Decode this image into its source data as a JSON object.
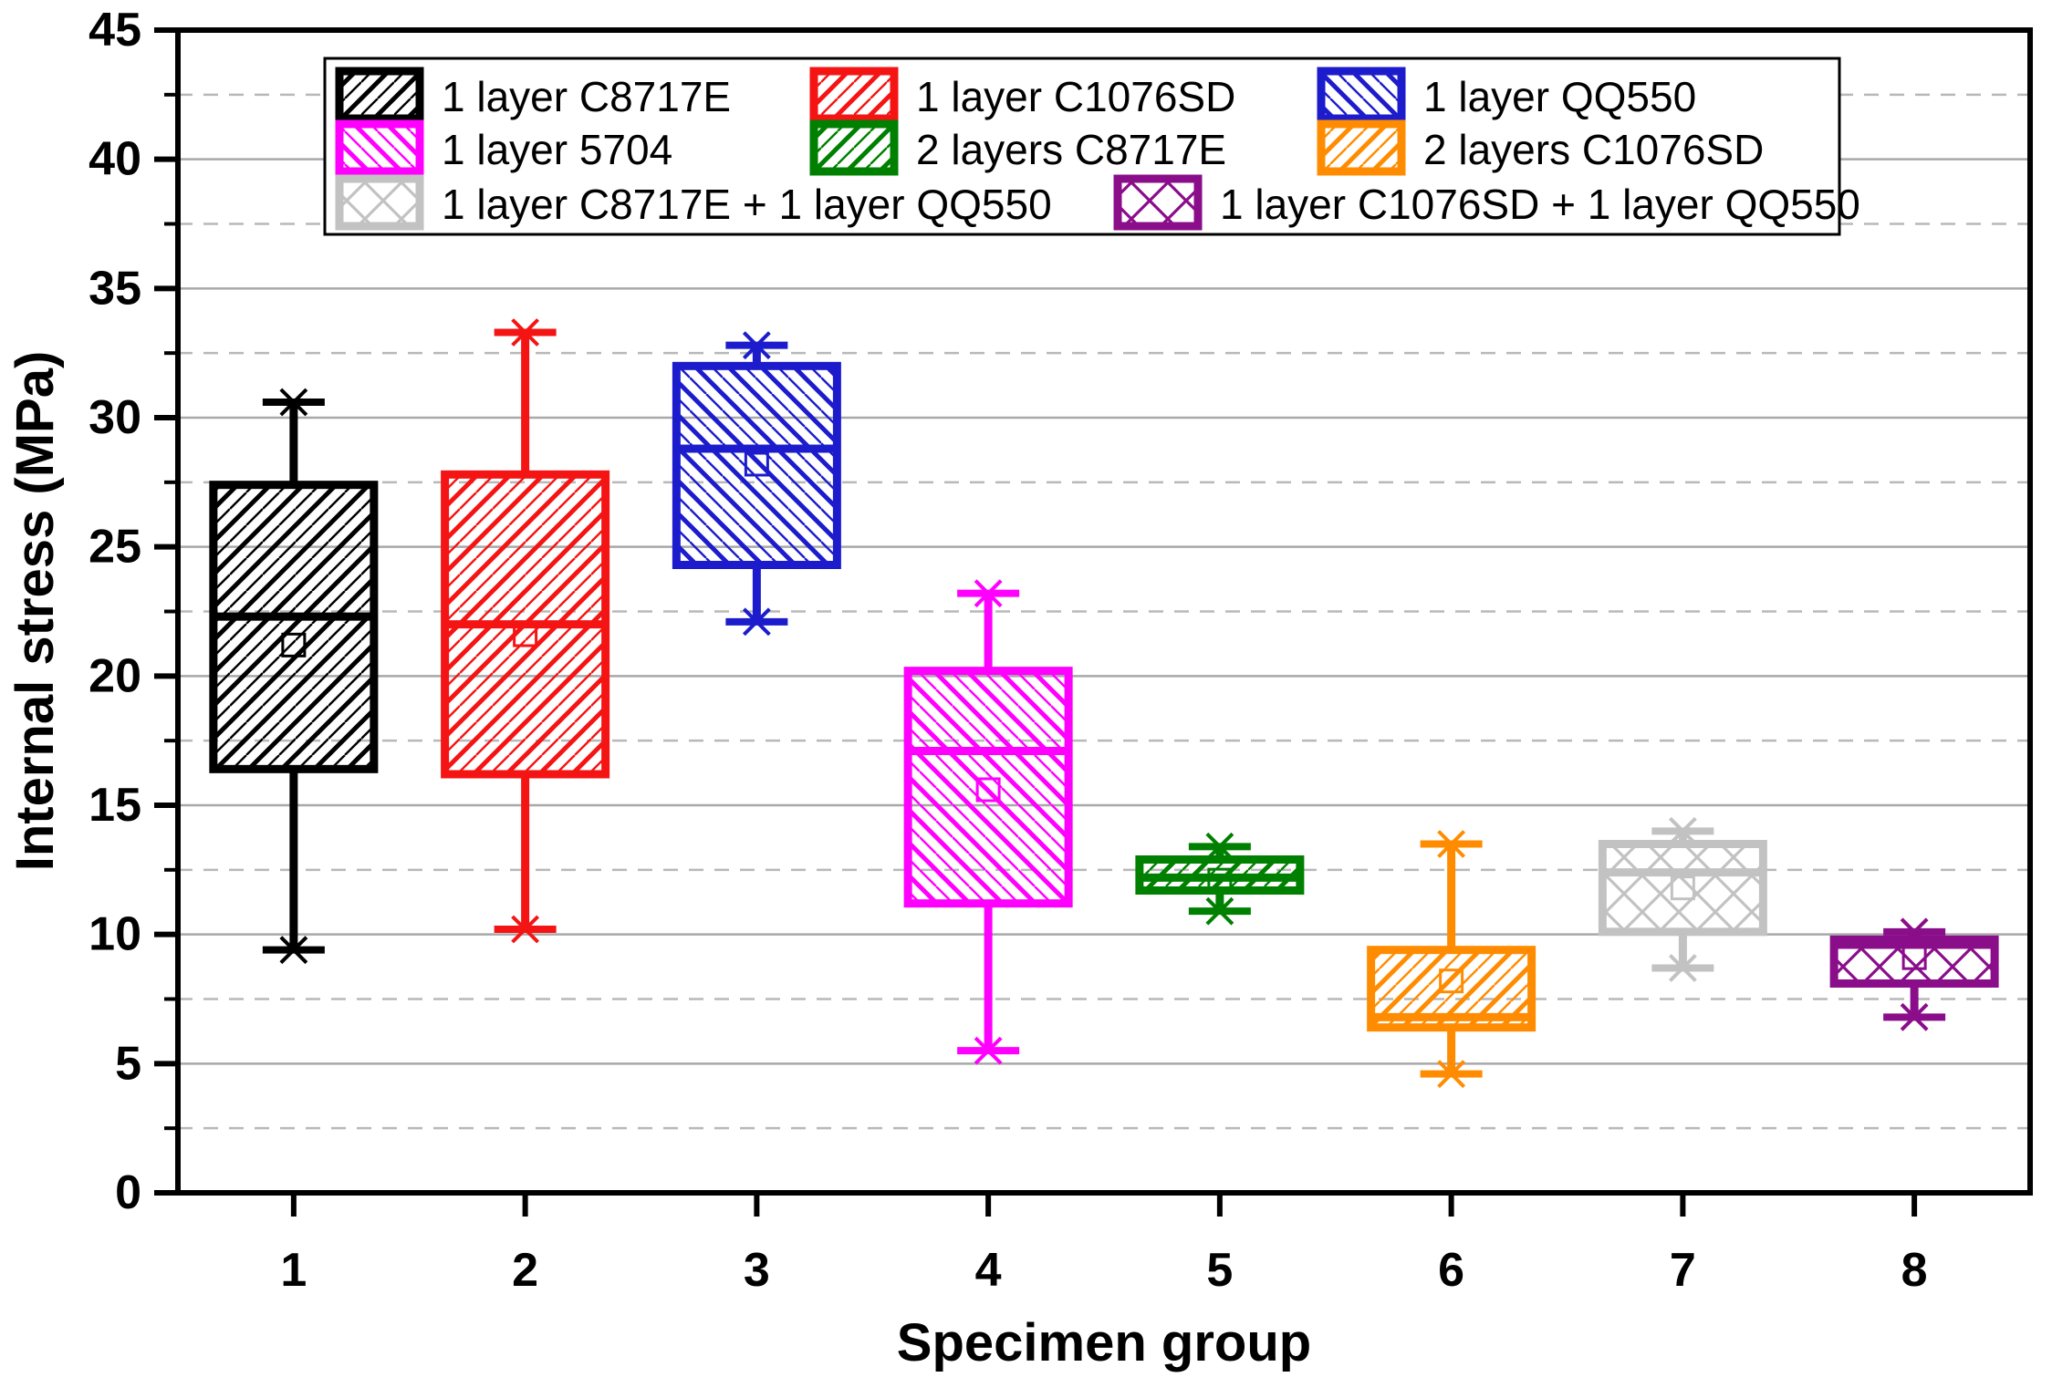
{
  "chart_data": {
    "type": "box",
    "title": "",
    "xlabel": "Specimen group",
    "ylabel": "Internal stress (MPa)",
    "ylim": [
      0,
      45
    ],
    "y_major_step": 5,
    "y_minor_step": 2.5,
    "y_tick_labels": [
      "0",
      "5",
      "10",
      "15",
      "20",
      "25",
      "30",
      "35",
      "40",
      "45"
    ],
    "x_tick_labels": [
      "1",
      "2",
      "3",
      "4",
      "5",
      "6",
      "7",
      "8"
    ],
    "grid": "horizontal: solid light-gray at majors, dashed at minors",
    "legend_position": "top-inside, white box, 3 rows",
    "frame": true,
    "series": [
      {
        "group": 1,
        "label": "1 layer C8717E",
        "color": "#000000",
        "hatch": "diag-up",
        "whisker_low": 9.4,
        "q1": 16.4,
        "median": 22.3,
        "mean": 21.2,
        "q3": 27.4,
        "whisker_high": 30.6
      },
      {
        "group": 2,
        "label": "1 layer C1076SD",
        "color": "#f51414",
        "hatch": "diag-up",
        "whisker_low": 10.2,
        "q1": 16.2,
        "median": 22.0,
        "mean": 21.6,
        "q3": 27.8,
        "whisker_high": 33.3
      },
      {
        "group": 3,
        "label": "1 layer QQ550",
        "color": "#1c1ccd",
        "hatch": "diag-down",
        "whisker_low": 22.1,
        "q1": 24.3,
        "median": 28.8,
        "mean": 28.2,
        "q3": 32.0,
        "whisker_high": 32.8
      },
      {
        "group": 4,
        "label": "1 layer 5704",
        "color": "#ff00ff",
        "hatch": "diag-down",
        "whisker_low": 5.5,
        "q1": 11.2,
        "median": 17.1,
        "mean": 15.6,
        "q3": 20.2,
        "whisker_high": 23.2
      },
      {
        "group": 5,
        "label": "2 layers C8717E",
        "color": "#008000",
        "hatch": "diag-up",
        "whisker_low": 10.9,
        "q1": 11.7,
        "median": 12.2,
        "mean": 12.1,
        "q3": 12.9,
        "whisker_high": 13.4
      },
      {
        "group": 6,
        "label": "2 layers C1076SD",
        "color": "#ff8c00",
        "hatch": "diag-up",
        "whisker_low": 4.6,
        "q1": 6.4,
        "median": 6.8,
        "mean": 8.2,
        "q3": 9.4,
        "whisker_high": 13.5
      },
      {
        "group": 7,
        "label": "1 layer C8717E + 1 layer QQ550",
        "color": "#c2c2c2",
        "hatch": "cross",
        "whisker_low": 8.7,
        "q1": 10.1,
        "median": 12.4,
        "mean": 11.8,
        "q3": 13.5,
        "whisker_high": 14.0
      },
      {
        "group": 8,
        "label": "1 layer C1076SD + 1 layer QQ550",
        "color": "#8a0d8a",
        "hatch": "cross",
        "whisker_low": 6.8,
        "q1": 8.1,
        "median": 9.6,
        "mean": 9.1,
        "q3": 9.8,
        "whisker_high": 10.1
      }
    ],
    "marker_notes": {
      "median": "solid line across box",
      "mean": "small open square",
      "whisker_end": "cap line with asterisk/star marker"
    },
    "colors": {
      "grid_major": "#a8a8a8",
      "grid_minor": "#b8b8b8",
      "frame": "#000000",
      "legend_border": "#000000",
      "background": "#ffffff"
    }
  }
}
